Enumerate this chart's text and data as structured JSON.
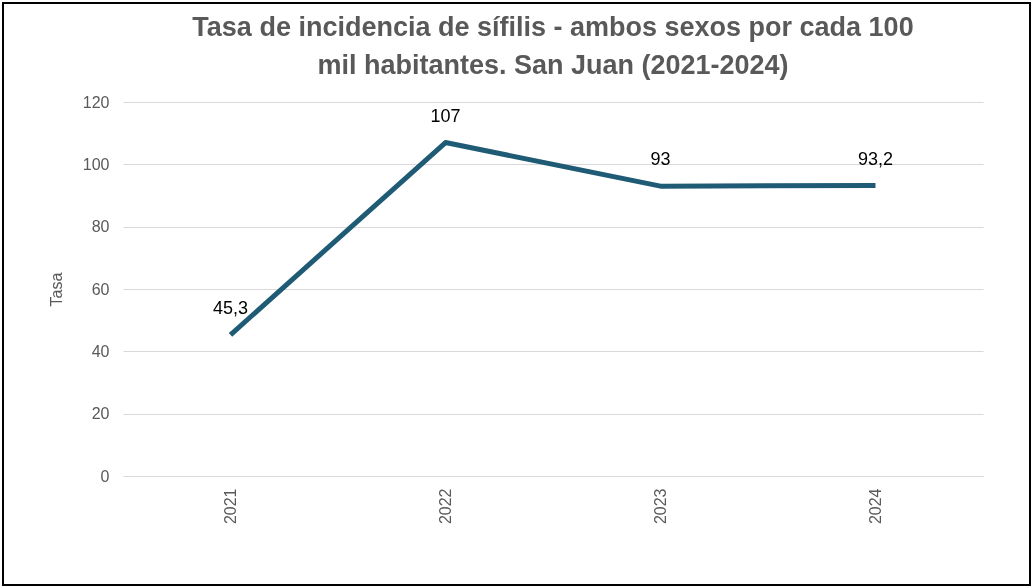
{
  "chart_data": {
    "type": "line",
    "title": "Tasa de incidencia de sífilis - ambos sexos por cada 100 mil habitantes. San Juan (2021-2024)",
    "ylabel": "Tasa",
    "categories": [
      "2021",
      "2022",
      "2023",
      "2024"
    ],
    "series": [
      {
        "color": "#1f5b75",
        "values": [
          45.3,
          107,
          93,
          93.2
        ],
        "value_labels": [
          "45,3",
          "107",
          "93",
          "93,2"
        ]
      }
    ],
    "ylim": [
      0,
      120
    ],
    "yticks": [
      0,
      20,
      40,
      60,
      80,
      100,
      120
    ],
    "grid": "y",
    "legend": false,
    "marker": "none",
    "line_style": "solid"
  }
}
